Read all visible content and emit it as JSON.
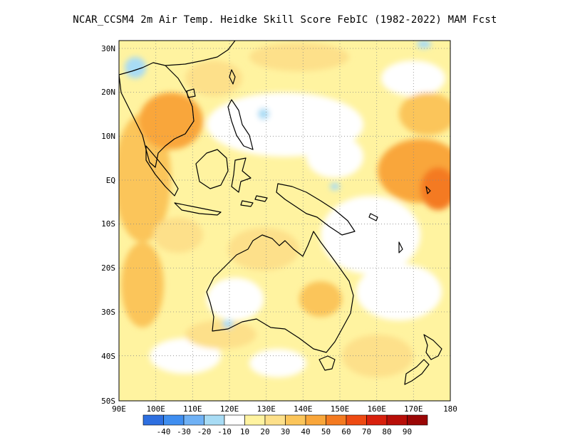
{
  "title": "NCAR_CCSM4  2m Air Temp. Heidke Skill Score FebIC (1982-2022) MAM Fcst",
  "map": {
    "lon_labels": [
      "90E",
      "100E",
      "110E",
      "120E",
      "130E",
      "140E",
      "150E",
      "160E",
      "170E",
      "180"
    ],
    "lat_labels": [
      "30N",
      "20N",
      "10N",
      "EQ",
      "10S",
      "20S",
      "30S",
      "40S",
      "50S"
    ],
    "lon_range": [
      90,
      180
    ],
    "lat_range": [
      -50,
      32
    ],
    "gridlines": "dotted"
  },
  "colorbar": {
    "labels": [
      "-40",
      "-30",
      "-20",
      "-10",
      "10",
      "20",
      "30",
      "40",
      "50",
      "60",
      "70",
      "80",
      "90"
    ],
    "colors": [
      "#2e6fe0",
      "#3f8ef0",
      "#6fb1f5",
      "#a8dcf5",
      "#ffffff",
      "#fff3a0",
      "#fde08a",
      "#fbc55a",
      "#f9a63a",
      "#f47a20",
      "#ee4a12",
      "#d8200c",
      "#b80e08",
      "#9a0605"
    ]
  },
  "colors": {
    "land_outline": "#000000",
    "background": "#ffffff"
  }
}
